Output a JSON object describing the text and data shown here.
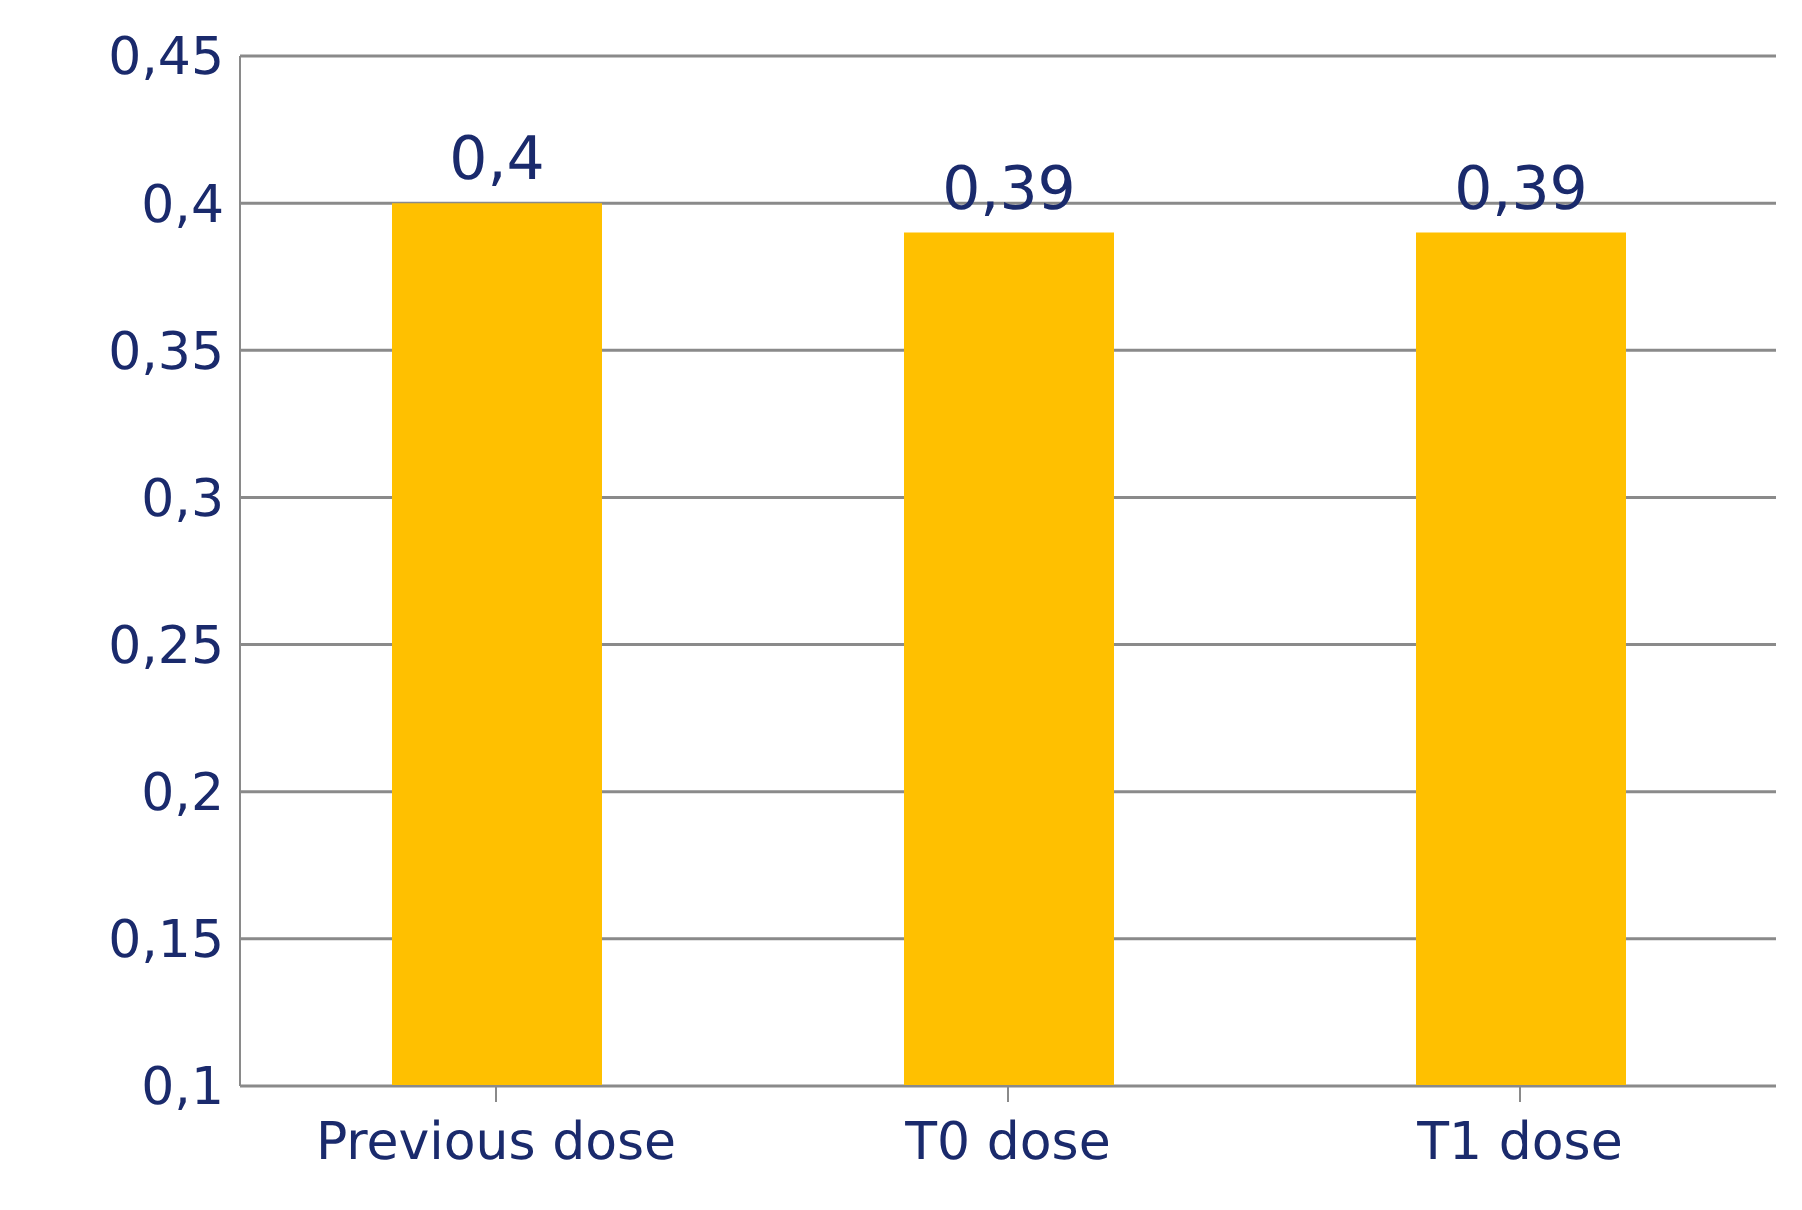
{
  "chart_data": {
    "type": "bar",
    "categories": [
      "Previous dose",
      "T0 dose",
      "T1 dose"
    ],
    "values": [
      0.4,
      0.39,
      0.39
    ],
    "value_labels": [
      "0,4",
      "0,39",
      "0,39"
    ],
    "color": "#ffc000",
    "ylim": [
      0.1,
      0.45
    ],
    "yticks": [
      {
        "value": 0.1,
        "label": "0,1"
      },
      {
        "value": 0.15,
        "label": "0,15"
      },
      {
        "value": 0.2,
        "label": "0,2"
      },
      {
        "value": 0.25,
        "label": "0,25"
      },
      {
        "value": 0.3,
        "label": "0,3"
      },
      {
        "value": 0.35,
        "label": "0,35"
      },
      {
        "value": 0.4,
        "label": "0,4"
      },
      {
        "value": 0.45,
        "label": "0,45"
      }
    ],
    "grid": "y"
  }
}
